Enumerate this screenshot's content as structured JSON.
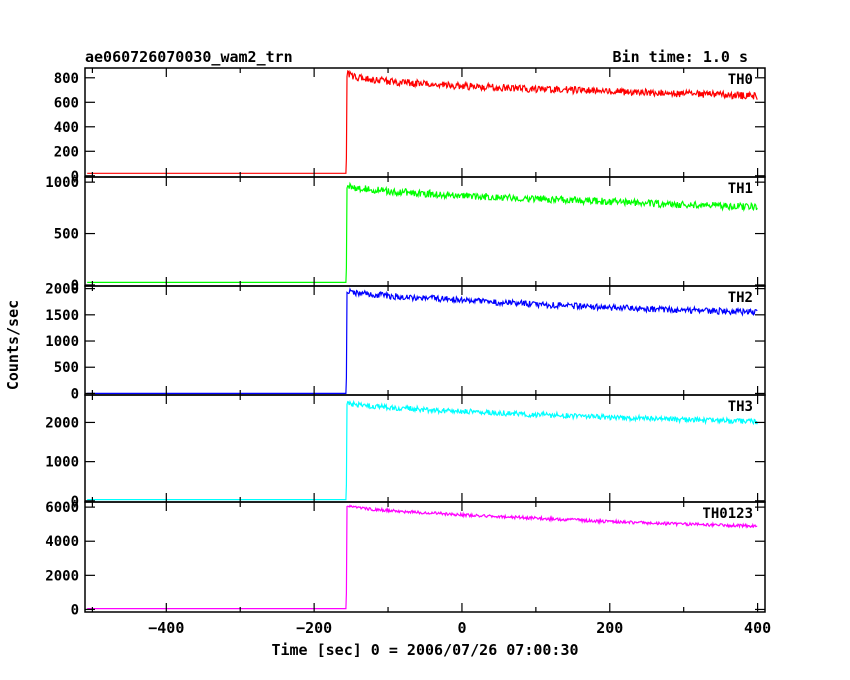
{
  "title_left": "ae060726070030_wam2_trn",
  "title_right": "Bin time: 1.0 s",
  "ylabel": "Counts/sec",
  "xlabel": "Time [sec] 0 = 2006/07/26 07:00:30",
  "chart_data": {
    "type": "line",
    "xlim": [
      -510,
      410
    ],
    "x_ticks": [
      -400,
      -200,
      0,
      200,
      400
    ],
    "x_tick_labels": [
      "−400",
      "−200",
      "0",
      "200",
      "400"
    ],
    "grid": false,
    "panels": [
      {
        "name": "TH0",
        "color": "#ff0000",
        "ylim": [
          -10,
          880
        ],
        "y_ticks": [
          0,
          200,
          400,
          600,
          800
        ],
        "y_tick_labels": [
          "0",
          "200",
          "400",
          "600",
          "800"
        ],
        "onset_x": -157,
        "pre_level": 20,
        "post_x": [
          -155,
          -140,
          -100,
          -50,
          0,
          100,
          200,
          300,
          400
        ],
        "post_y": [
          830,
          800,
          770,
          750,
          730,
          710,
          690,
          670,
          650
        ],
        "noise": 30
      },
      {
        "name": "TH1",
        "color": "#00ff00",
        "ylim": [
          -10,
          1050
        ],
        "y_ticks": [
          0,
          500,
          1000
        ],
        "y_tick_labels": [
          "0",
          "500",
          "1000"
        ],
        "onset_x": -157,
        "pre_level": 25,
        "post_x": [
          -155,
          -140,
          -100,
          0,
          100,
          200,
          300,
          400
        ],
        "post_y": [
          960,
          940,
          910,
          870,
          840,
          810,
          780,
          760
        ],
        "noise": 35
      },
      {
        "name": "TH2",
        "color": "#0000ff",
        "ylim": [
          -30,
          2050
        ],
        "y_ticks": [
          0,
          500,
          1000,
          1500,
          2000
        ],
        "y_tick_labels": [
          "0",
          "500",
          "1000",
          "1500",
          "2000"
        ],
        "onset_x": -157,
        "pre_level": 0,
        "post_x": [
          -155,
          -140,
          -100,
          0,
          100,
          200,
          300,
          400
        ],
        "post_y": [
          1950,
          1910,
          1860,
          1780,
          1700,
          1640,
          1590,
          1550
        ],
        "noise": 60
      },
      {
        "name": "TH3",
        "color": "#00ffff",
        "ylim": [
          -30,
          2700
        ],
        "y_ticks": [
          0,
          1000,
          2000
        ],
        "y_tick_labels": [
          "0",
          "1000",
          "2000"
        ],
        "onset_x": -157,
        "pre_level": 30,
        "post_x": [
          -155,
          -140,
          -100,
          0,
          100,
          200,
          300,
          400
        ],
        "post_y": [
          2480,
          2440,
          2380,
          2280,
          2200,
          2130,
          2070,
          2020
        ],
        "noise": 70
      },
      {
        "name": "TH0123",
        "color": "#ff00ff",
        "ylim": [
          -150,
          6300
        ],
        "y_ticks": [
          0,
          2000,
          4000,
          6000
        ],
        "y_tick_labels": [
          "0",
          "2000",
          "4000",
          "6000"
        ],
        "onset_x": -157,
        "pre_level": 50,
        "post_x": [
          -155,
          -140,
          -100,
          0,
          100,
          200,
          300,
          400
        ],
        "post_y": [
          6050,
          5950,
          5800,
          5550,
          5350,
          5150,
          5000,
          4900
        ],
        "noise": 90
      }
    ]
  }
}
